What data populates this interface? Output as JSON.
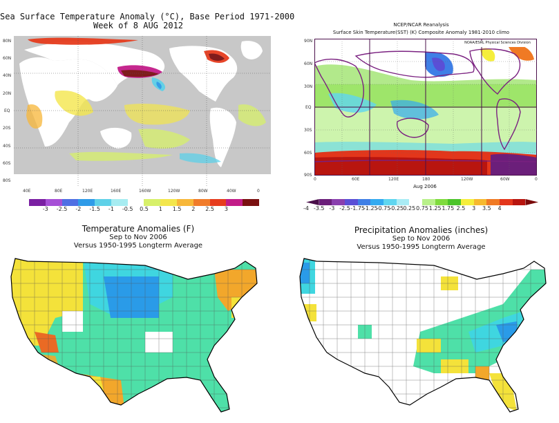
{
  "sst_weekly": {
    "title_line1": "Sea Surface Temperature Anomaly (°C), Base Period 1971-2000",
    "title_line2": "Week of  8 AUG 2012",
    "lat_labels": [
      "80N",
      "60N",
      "40N",
      "20N",
      "EQ",
      "20S",
      "40S",
      "60S",
      "80S"
    ],
    "lon_labels": [
      "40E",
      "80E",
      "120E",
      "160E",
      "160W",
      "120W",
      "80W",
      "40W",
      "0"
    ],
    "colorbar_labels": [
      "-3",
      "-2.5",
      "-2",
      "-1.5",
      "-1",
      "-0.5",
      "0.5",
      "1",
      "1.5",
      "2",
      "2.5",
      "3"
    ],
    "colorbar_colors": [
      "#7a1fa2",
      "#a64fd6",
      "#4f6fe3",
      "#2f9be8",
      "#5fd1e8",
      "#a7ecf1",
      "#ffffff",
      "#d7f06a",
      "#f3e64d",
      "#f7b739",
      "#f07c2b",
      "#e63c1e",
      "#c21c88",
      "#7a1010"
    ]
  },
  "ncep_reanalysis": {
    "title_line1": "NCEP/NCAR Reanalysis",
    "title_line2": "Surface Skin Temperature(SST) (K) Composite Anomaly 1981-2010 climo",
    "credit": "NOAA/ESRL Physical Sciences Division",
    "lat_labels": [
      "90N",
      "60N",
      "30N",
      "EQ",
      "30S",
      "60S",
      "90S"
    ],
    "lon_labels": [
      "0",
      "60E",
      "120E",
      "180",
      "120W",
      "60W",
      "0"
    ],
    "date_label": "Aug 2006",
    "colorbar_labels": [
      "-4",
      "-3.5",
      "-3",
      "-2.5",
      "-1.75",
      "-1.25",
      "-0.75",
      "-0.25",
      "0.25",
      "0.75",
      "1.25",
      "1.75",
      "2.5",
      "3",
      "3.5",
      "4"
    ],
    "colorbar_colors": [
      "#4a0f4a",
      "#6b1f7a",
      "#8a3fae",
      "#5a4fd6",
      "#3f7fe6",
      "#33aaf0",
      "#5fd6f0",
      "#a9ecf5",
      "#ffffff",
      "#b8f08a",
      "#7fdb3e",
      "#4cc42b",
      "#f5ee3c",
      "#f6b92f",
      "#f07a24",
      "#e3361b",
      "#b8150f",
      "#7a0a0a"
    ]
  },
  "temp_anomalies": {
    "title": "Temperature Anomalies (F)",
    "subtitle1": "Sep to Nov 2006",
    "subtitle2": "Versus 1950-1995 Longterm Average"
  },
  "precip_anomalies": {
    "title": "Precipitation Anomalies (inches)",
    "subtitle1": "Sep to Nov 2006",
    "subtitle2": "Versus 1950-1995 Longterm Average"
  },
  "colors": {
    "land_gray": "#c8c8c8",
    "ocean_white": "#ffffff",
    "cyan": "#3fd6e0",
    "green_cyan": "#4ee0a8",
    "blue": "#2a9be8",
    "yellow": "#f4e23a",
    "orange": "#f2a72b",
    "red_orange": "#ea6a24",
    "purple": "#7a2080"
  }
}
